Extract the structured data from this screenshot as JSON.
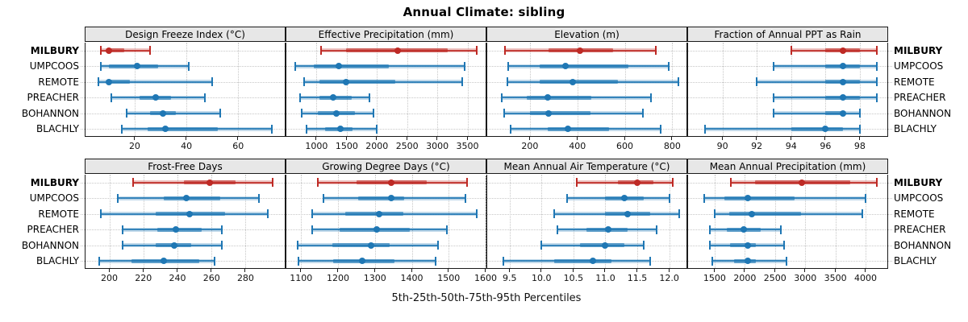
{
  "title": "Annual Climate: sibling",
  "footer_label": "5th-25th-50th-75th-95th Percentiles",
  "stations": [
    "MILBURY",
    "UMPCOOS",
    "REMOTE",
    "PREACHER",
    "BOHANNON",
    "BLACHLY"
  ],
  "highlight_station": "MILBURY",
  "colors": {
    "highlight": "#be2a25",
    "normal": "#1f77b4",
    "strip_bg": "#e7e7e7",
    "border": "#1a1a1a",
    "grid": "#c7c7c7"
  },
  "chart_data": {
    "type": "dotplot-intervals",
    "percentiles": [
      5,
      25,
      50,
      75,
      95
    ],
    "legend_note": "whisker = 5th-95th, thick band = 25th-75th, dot = median",
    "panels": [
      {
        "strip": "Design Freeze Index (°C)",
        "row": 0,
        "col": 0,
        "xlim": [
          1,
          78
        ],
        "ticks": [
          20,
          40,
          60
        ],
        "tick_labels": [
          "20",
          "40",
          "60"
        ],
        "values": [
          [
            7,
            9,
            10,
            16,
            26
          ],
          [
            7,
            10,
            21,
            29,
            41
          ],
          [
            6,
            9,
            10,
            18,
            50
          ],
          [
            11,
            22,
            28,
            34,
            47
          ],
          [
            17,
            26,
            31,
            36,
            53
          ],
          [
            15,
            25,
            32,
            52,
            73
          ]
        ]
      },
      {
        "strip": "Effective Precipitation (mm)",
        "row": 0,
        "col": 1,
        "xlim": [
          500,
          3800
        ],
        "ticks": [
          1000,
          1500,
          2000,
          2500,
          3000,
          3500
        ],
        "tick_labels": [
          "1000",
          "1500",
          "2000",
          "2500",
          "3000",
          "3500"
        ],
        "values": [
          [
            1070,
            1490,
            2350,
            3170,
            3650
          ],
          [
            650,
            950,
            1370,
            2200,
            3450
          ],
          [
            800,
            1050,
            1490,
            2310,
            3410
          ],
          [
            730,
            1050,
            1270,
            1580,
            1880
          ],
          [
            750,
            1020,
            1330,
            1640,
            1940
          ],
          [
            840,
            1140,
            1390,
            1600,
            2000
          ]
        ]
      },
      {
        "strip": "Elevation (m)",
        "row": 0,
        "col": 2,
        "xlim": [
          20,
          860
        ],
        "ticks": [
          200,
          400,
          600,
          800
        ],
        "tick_labels": [
          "200",
          "400",
          "600",
          "800"
        ],
        "values": [
          [
            95,
            280,
            410,
            550,
            730
          ],
          [
            110,
            240,
            350,
            615,
            785
          ],
          [
            105,
            240,
            380,
            570,
            825
          ],
          [
            80,
            185,
            275,
            460,
            710
          ],
          [
            90,
            200,
            280,
            455,
            675
          ],
          [
            120,
            275,
            360,
            535,
            750
          ]
        ]
      },
      {
        "strip": "Fraction of Annual PPT as Rain",
        "row": 0,
        "col": 3,
        "xlim": [
          88,
          99.6
        ],
        "ticks": [
          90,
          92,
          94,
          96,
          98
        ],
        "tick_labels": [
          "90",
          "92",
          "94",
          "96",
          "98"
        ],
        "values": [
          [
            94,
            96,
            97,
            98,
            99
          ],
          [
            93,
            96,
            97,
            98,
            99
          ],
          [
            92,
            96,
            97,
            98,
            99
          ],
          [
            93,
            96,
            97,
            98,
            99
          ],
          [
            93,
            96,
            97,
            97,
            98
          ],
          [
            89,
            94,
            96,
            97,
            98
          ]
        ]
      },
      {
        "strip": "Frost-Free Days",
        "row": 1,
        "col": 0,
        "xlim": [
          186,
          303
        ],
        "ticks": [
          200,
          220,
          240,
          260,
          280
        ],
        "tick_labels": [
          "200",
          "220",
          "240",
          "260",
          "280"
        ],
        "values": [
          [
            214,
            244,
            259,
            274,
            296
          ],
          [
            205,
            232,
            245,
            265,
            288
          ],
          [
            195,
            227,
            247,
            268,
            293
          ],
          [
            208,
            228,
            239,
            254,
            266
          ],
          [
            208,
            227,
            238,
            248,
            266
          ],
          [
            194,
            213,
            232,
            253,
            262
          ]
        ]
      },
      {
        "strip": "Growing Degree Days (°C)",
        "row": 1,
        "col": 1,
        "xlim": [
          1060,
          1600
        ],
        "ticks": [
          1100,
          1200,
          1300,
          1400,
          1500,
          1600
        ],
        "tick_labels": [
          "1100",
          "1200",
          "1300",
          "1400",
          "1500",
          "1600"
        ],
        "values": [
          [
            1145,
            1250,
            1345,
            1440,
            1550
          ],
          [
            1160,
            1255,
            1345,
            1380,
            1545
          ],
          [
            1130,
            1220,
            1312,
            1376,
            1575
          ],
          [
            1130,
            1205,
            1305,
            1395,
            1495
          ],
          [
            1090,
            1185,
            1290,
            1340,
            1470
          ],
          [
            1093,
            1187,
            1265,
            1352,
            1465
          ]
        ]
      },
      {
        "strip": "Mean Annual Air Temperature (°C)",
        "row": 1,
        "col": 2,
        "xlim": [
          9.15,
          12.27
        ],
        "ticks": [
          9.5,
          10.0,
          10.5,
          11.0,
          11.5,
          12.0
        ],
        "tick_labels": [
          "9.5",
          "10.0",
          "10.5",
          "11.0",
          "11.5",
          "12.0"
        ],
        "values": [
          [
            10.55,
            11.2,
            11.5,
            11.75,
            12.05
          ],
          [
            10.4,
            11.0,
            11.3,
            11.6,
            12.0
          ],
          [
            10.2,
            11.0,
            11.35,
            11.7,
            12.15
          ],
          [
            10.25,
            10.7,
            11.05,
            11.35,
            11.8
          ],
          [
            10.0,
            10.6,
            11.0,
            11.3,
            11.6
          ],
          [
            9.4,
            10.2,
            10.8,
            11.1,
            11.7
          ]
        ]
      },
      {
        "strip": "Mean Annual Precipitation (mm)",
        "row": 1,
        "col": 3,
        "xlim": [
          1060,
          4360
        ],
        "ticks": [
          1500,
          2000,
          2500,
          3000,
          3500,
          4000
        ],
        "tick_labels": [
          "1500",
          "2000",
          "2500",
          "3000",
          "3500",
          "4000"
        ],
        "values": [
          [
            1770,
            2170,
            2950,
            3740,
            4180
          ],
          [
            1330,
            1665,
            2050,
            2820,
            4000
          ],
          [
            1500,
            1740,
            2120,
            2935,
            3950
          ],
          [
            1420,
            1695,
            1985,
            2265,
            2590
          ],
          [
            1420,
            1750,
            2045,
            2185,
            2645
          ],
          [
            1455,
            1815,
            2055,
            2180,
            2690
          ]
        ]
      }
    ]
  }
}
